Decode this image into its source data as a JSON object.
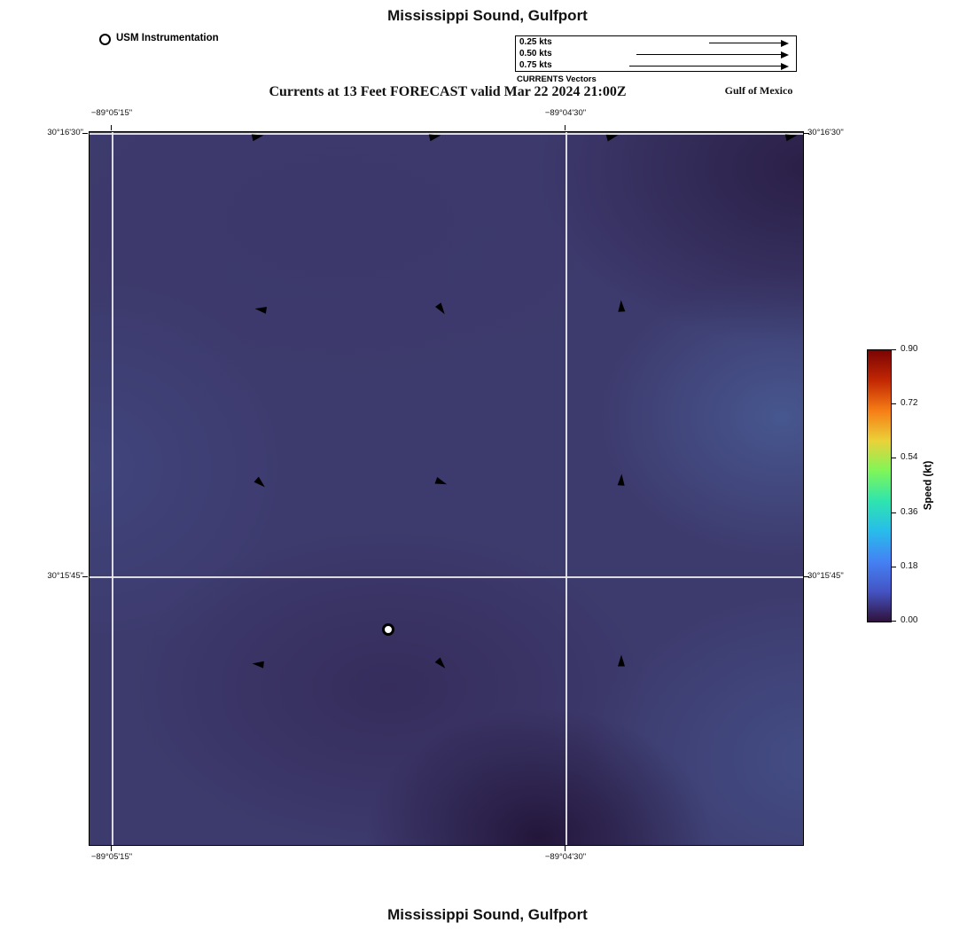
{
  "page": {
    "top_title": "Mississippi Sound, Gulfport",
    "subtitle": "Currents at 13 Feet FORECAST valid Mar 22 2024 21:00Z",
    "region_label": "Gulf of Mexico",
    "bottom_title": "Mississippi Sound, Gulfport"
  },
  "legend": {
    "instrumentation_label": "USM Instrumentation",
    "vector_legend": {
      "caption": "CURRENTS Vectors",
      "items": [
        {
          "label": "0.25 kts",
          "arrow_len": 88
        },
        {
          "label": "0.50 kts",
          "arrow_len": 170
        },
        {
          "label": "0.75 kts",
          "arrow_len": 178
        }
      ]
    }
  },
  "axes": {
    "top": [
      "−89°05'15\"",
      "−89°04'30\""
    ],
    "bottom": [
      "−89°05'15\"",
      "−89°04'30\""
    ],
    "left": [
      "30°16'30\"",
      "30°15'45\""
    ],
    "right": [
      "30°16'30\"",
      "30°15'45\""
    ]
  },
  "colorbar": {
    "label": "Speed (kt)",
    "ticks": [
      "0.90",
      "0.72",
      "0.54",
      "0.36",
      "0.18",
      "0.00"
    ],
    "gradient": [
      "#7a0403",
      "#c22703",
      "#f67d15",
      "#ecd139",
      "#7ff658",
      "#2ee5ae",
      "#28bceb",
      "#4482f4",
      "#4454c4",
      "#30123b"
    ]
  },
  "chart_data": {
    "type": "heatmap",
    "title": "Currents at 13 Feet FORECAST valid Mar 22 2024 21:00Z",
    "region": "Mississippi Sound, Gulfport",
    "field": "current speed",
    "units": "kt",
    "color_range": [
      0.0,
      0.9
    ],
    "colorbar_ticks": [
      0.9,
      0.72,
      0.54,
      0.36,
      0.18,
      0.0
    ],
    "x_ticks": [
      "−89°05'15\"",
      "−89°04'30\""
    ],
    "y_ticks": [
      "30°16'30\"",
      "30°15'45\""
    ],
    "station": {
      "name": "USM Instrumentation",
      "x_pct": 41.9,
      "y_pct": 69.8
    },
    "vectors": [
      {
        "x_pct": 23.6,
        "y_pct": 0.6,
        "angle_deg": -12
      },
      {
        "x_pct": 48.4,
        "y_pct": 0.6,
        "angle_deg": -12
      },
      {
        "x_pct": 73.3,
        "y_pct": 0.6,
        "angle_deg": -15
      },
      {
        "x_pct": 98.4,
        "y_pct": 0.6,
        "angle_deg": -12
      },
      {
        "x_pct": 24.0,
        "y_pct": 24.9,
        "angle_deg": 188
      },
      {
        "x_pct": 49.3,
        "y_pct": 24.9,
        "angle_deg": 55
      },
      {
        "x_pct": 74.5,
        "y_pct": 24.4,
        "angle_deg": -93
      },
      {
        "x_pct": 24.0,
        "y_pct": 49.3,
        "angle_deg": 42
      },
      {
        "x_pct": 49.3,
        "y_pct": 49.1,
        "angle_deg": 20
      },
      {
        "x_pct": 74.5,
        "y_pct": 48.8,
        "angle_deg": -87
      },
      {
        "x_pct": 23.6,
        "y_pct": 74.6,
        "angle_deg": 186
      },
      {
        "x_pct": 49.3,
        "y_pct": 74.6,
        "angle_deg": 48
      },
      {
        "x_pct": 74.5,
        "y_pct": 74.1,
        "angle_deg": -90
      }
    ]
  }
}
